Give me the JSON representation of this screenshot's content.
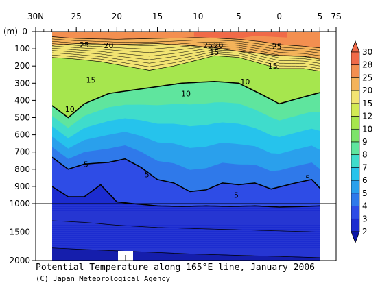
{
  "chart_data": {
    "type": "heatmap",
    "title": "Potential Temperature along 165°E line, January 2006",
    "credit": "(C) Japan Meteorological Agency",
    "y_unit_label": "(m)",
    "x_axis": {
      "range": [
        30,
        -7
      ],
      "tick_labels": [
        "30N",
        "25",
        "20",
        "15",
        "10",
        "5",
        "0",
        "5",
        "7S"
      ],
      "tick_values": [
        30,
        25,
        20,
        15,
        10,
        5,
        0,
        -5,
        -7
      ]
    },
    "y_axis": {
      "upper_range": [
        0,
        1000
      ],
      "lower_range": [
        1000,
        2000
      ],
      "tick_labels": [
        "0",
        "100",
        "200",
        "300",
        "400",
        "500",
        "600",
        "700",
        "800",
        "900",
        "1000",
        "1500",
        "2000"
      ],
      "tick_values": [
        0,
        100,
        200,
        300,
        400,
        500,
        600,
        700,
        800,
        900,
        1000,
        1500,
        2000
      ]
    },
    "colorbar": {
      "levels": [
        2,
        3,
        4,
        5,
        6,
        7,
        8,
        9,
        10,
        12,
        15,
        20,
        25,
        28,
        30
      ],
      "colors": [
        "#0a14a8",
        "#1c2cd0",
        "#2e4ce6",
        "#2f79ea",
        "#2aa0ec",
        "#26c3ec",
        "#3fdccc",
        "#5fe59e",
        "#7de36a",
        "#a6e64e",
        "#d2ea54",
        "#f2e472",
        "#f4b35a",
        "#f38f50",
        "#f06a48"
      ]
    },
    "contours": [
      {
        "level": 25,
        "points": [
          [
            28,
            30
          ],
          [
            25,
            40
          ],
          [
            20,
            45
          ],
          [
            15,
            40
          ],
          [
            10,
            35
          ],
          [
            8,
            38
          ],
          [
            5,
            45
          ],
          [
            2,
            60
          ],
          [
            0,
            75
          ],
          [
            -3,
            85
          ],
          [
            -5,
            95
          ]
        ]
      },
      {
        "level": 20,
        "points": [
          [
            28,
            80
          ],
          [
            25,
            70
          ],
          [
            20,
            75
          ],
          [
            15,
            70
          ],
          [
            10,
            85
          ],
          [
            8,
            95
          ],
          [
            5,
            115
          ],
          [
            2,
            130
          ],
          [
            0,
            140
          ],
          [
            -3,
            145
          ],
          [
            -5,
            160
          ]
        ]
      },
      {
        "level": 15,
        "points": [
          [
            28,
            150
          ],
          [
            25,
            160
          ],
          [
            22,
            175
          ],
          [
            19,
            200
          ],
          [
            16,
            225
          ],
          [
            13,
            200
          ],
          [
            10,
            165
          ],
          [
            8,
            140
          ],
          [
            5,
            150
          ],
          [
            2,
            190
          ],
          [
            0,
            215
          ],
          [
            -3,
            215
          ],
          [
            -5,
            230
          ]
        ]
      },
      {
        "level": 10,
        "points": [
          [
            28,
            430
          ],
          [
            26,
            500
          ],
          [
            24,
            420
          ],
          [
            21,
            360
          ],
          [
            18,
            340
          ],
          [
            15,
            320
          ],
          [
            12,
            300
          ],
          [
            10,
            295
          ],
          [
            8,
            290
          ],
          [
            5,
            300
          ],
          [
            2,
            370
          ],
          [
            0,
            420
          ],
          [
            -3,
            380
          ],
          [
            -5,
            355
          ]
        ]
      },
      {
        "level": 5,
        "points": [
          [
            28,
            730
          ],
          [
            26,
            800
          ],
          [
            24,
            770
          ],
          [
            21,
            760
          ],
          [
            19,
            740
          ],
          [
            17,
            790
          ],
          [
            15,
            860
          ],
          [
            13,
            880
          ],
          [
            11,
            930
          ],
          [
            9,
            920
          ],
          [
            7,
            880
          ],
          [
            5,
            890
          ],
          [
            3,
            880
          ],
          [
            1,
            915
          ],
          [
            -2,
            880
          ],
          [
            -4,
            860
          ],
          [
            -5,
            910
          ]
        ]
      },
      {
        "level": 4,
        "points": [
          [
            28,
            900
          ],
          [
            26,
            960
          ],
          [
            24,
            960
          ],
          [
            22,
            890
          ],
          [
            20,
            990
          ],
          [
            18,
            1000
          ],
          [
            15,
            1040
          ],
          [
            12,
            1050
          ],
          [
            9,
            1040
          ],
          [
            6,
            1050
          ],
          [
            3,
            1040
          ],
          [
            0,
            1060
          ],
          [
            -3,
            1050
          ],
          [
            -5,
            1040
          ]
        ]
      },
      {
        "level": 3,
        "points": [
          [
            28,
            1300
          ],
          [
            24,
            1330
          ],
          [
            20,
            1380
          ],
          [
            15,
            1420
          ],
          [
            10,
            1440
          ],
          [
            5,
            1460
          ],
          [
            0,
            1480
          ],
          [
            -5,
            1500
          ]
        ]
      },
      {
        "level": 2,
        "points": [
          [
            28,
            1780
          ],
          [
            25,
            1800
          ],
          [
            20,
            1830
          ],
          [
            15,
            1860
          ],
          [
            10,
            1890
          ],
          [
            5,
            1910
          ],
          [
            0,
            1930
          ],
          [
            -5,
            1950
          ]
        ]
      }
    ],
    "contour_labels": [
      {
        "text": "25",
        "x": 24,
        "y": 75
      },
      {
        "text": "20",
        "x": 21,
        "y": 80
      },
      {
        "text": "25",
        "x": 8.8,
        "y": 80
      },
      {
        "text": "20",
        "x": 7.5,
        "y": 80
      },
      {
        "text": "15",
        "x": 8,
        "y": 120
      },
      {
        "text": "25",
        "x": 0.3,
        "y": 85
      },
      {
        "text": "15",
        "x": 0.8,
        "y": 200
      },
      {
        "text": "15",
        "x": 23.2,
        "y": 280
      },
      {
        "text": "10",
        "x": 11.5,
        "y": 360
      },
      {
        "text": "10",
        "x": 4.2,
        "y": 290
      },
      {
        "text": "10",
        "x": 25.8,
        "y": 450
      },
      {
        "text": "5",
        "x": 23.8,
        "y": 770
      },
      {
        "text": "5",
        "x": 16.3,
        "y": 830
      },
      {
        "text": "5",
        "x": 5.3,
        "y": 950
      },
      {
        "text": "5",
        "x": -3.5,
        "y": 850
      }
    ]
  }
}
